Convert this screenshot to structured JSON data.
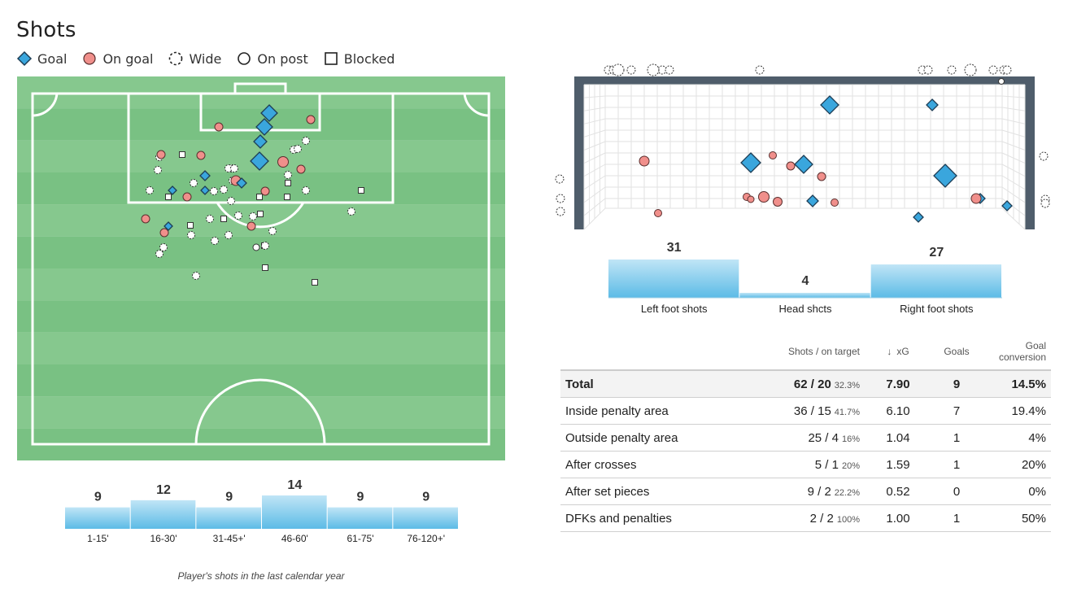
{
  "title": "Shots",
  "legend": [
    {
      "label": "Goal",
      "icon": "goal-diamond-icon"
    },
    {
      "label": "On goal",
      "icon": "on-goal-circle-icon"
    },
    {
      "label": "Wide",
      "icon": "wide-dashed-circle-icon"
    },
    {
      "label": "On post",
      "icon": "on-post-circle-icon"
    },
    {
      "label": "Blocked",
      "icon": "blocked-square-icon"
    }
  ],
  "colors": {
    "pitch_dark": "#79c183",
    "pitch_light": "#86c88e",
    "goal": "#3aa6dd",
    "on_goal": "#f08f8b",
    "bar_top": "#b7e0f4",
    "bar_bottom": "#63bde6",
    "goal_frame": "#4f5d6b"
  },
  "time_bars": {
    "categories": [
      "1-15'",
      "16-30'",
      "31-45+'",
      "46-60'",
      "61-75'",
      "76-120+'"
    ],
    "values": [
      9,
      12,
      9,
      14,
      9,
      9
    ]
  },
  "caption": "Player's shots in the last calendar year",
  "foot_bars": {
    "categories": [
      "Left foot shots",
      "Head shcts",
      "Right foot shots"
    ],
    "values": [
      31,
      4,
      27
    ]
  },
  "table": {
    "headers": {
      "shots": "Shots / on target",
      "sort_arrow": "↓",
      "xg": "xG",
      "goals": "Goals",
      "conversion": "Goal conversion"
    },
    "rows": [
      {
        "name": "Total",
        "shots": "62 / 20",
        "pct": "32.3%",
        "xg": "7.90",
        "goals": "9",
        "conv": "14.5%"
      },
      {
        "name": "Inside penalty area",
        "shots": "36 / 15",
        "pct": "41.7%",
        "xg": "6.10",
        "goals": "7",
        "conv": "19.4%"
      },
      {
        "name": "Outside penalty area",
        "shots": "25 / 4",
        "pct": "16%",
        "xg": "1.04",
        "goals": "1",
        "conv": "4%"
      },
      {
        "name": "After crosses",
        "shots": "5 / 1",
        "pct": "20%",
        "xg": "1.59",
        "goals": "1",
        "conv": "20%"
      },
      {
        "name": "After set pieces",
        "shots": "9 / 2",
        "pct": "22.2%",
        "xg": "0.52",
        "goals": "0",
        "conv": "0%"
      },
      {
        "name": "DFKs and penalties",
        "shots": "2 / 2",
        "pct": "100%",
        "xg": "1.00",
        "goals": "1",
        "conv": "50%"
      }
    ]
  }
}
